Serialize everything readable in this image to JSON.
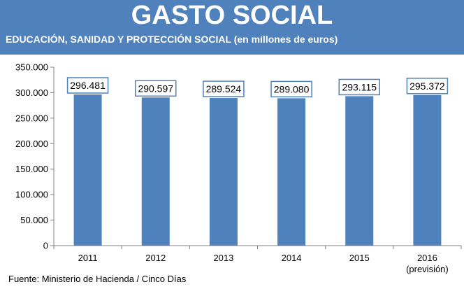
{
  "header": {
    "title": "GASTO SOCIAL",
    "subtitle": "EDUCACIÓN, SANIDAD Y PROTECCIÓN SOCIAL (en millones de euros)"
  },
  "source": "Fuente: Ministerio de Hacienda / Cinco Días",
  "colors": {
    "header_bg": "#4f81bd",
    "bar": "#4f81bd",
    "label_border": "#4f81bd"
  },
  "chart_data": {
    "type": "bar",
    "categories": [
      "2011",
      "2012",
      "2013",
      "2014",
      "2015",
      "2016"
    ],
    "category_sublabels": [
      "",
      "",
      "",
      "",
      "",
      "(previsión)"
    ],
    "values": [
      296481,
      290597,
      289524,
      289080,
      293115,
      295372
    ],
    "data_labels": [
      "296.481",
      "290.597",
      "289.524",
      "289.080",
      "293.115",
      "295.372"
    ],
    "ylim": [
      0,
      350000
    ],
    "yticks": [
      0,
      50000,
      100000,
      150000,
      200000,
      250000,
      300000,
      350000
    ],
    "ytick_labels": [
      "0",
      "50.000",
      "100.000",
      "150.000",
      "200.000",
      "250.000",
      "300.000",
      "350.000"
    ],
    "grid": false,
    "legend": "none"
  }
}
